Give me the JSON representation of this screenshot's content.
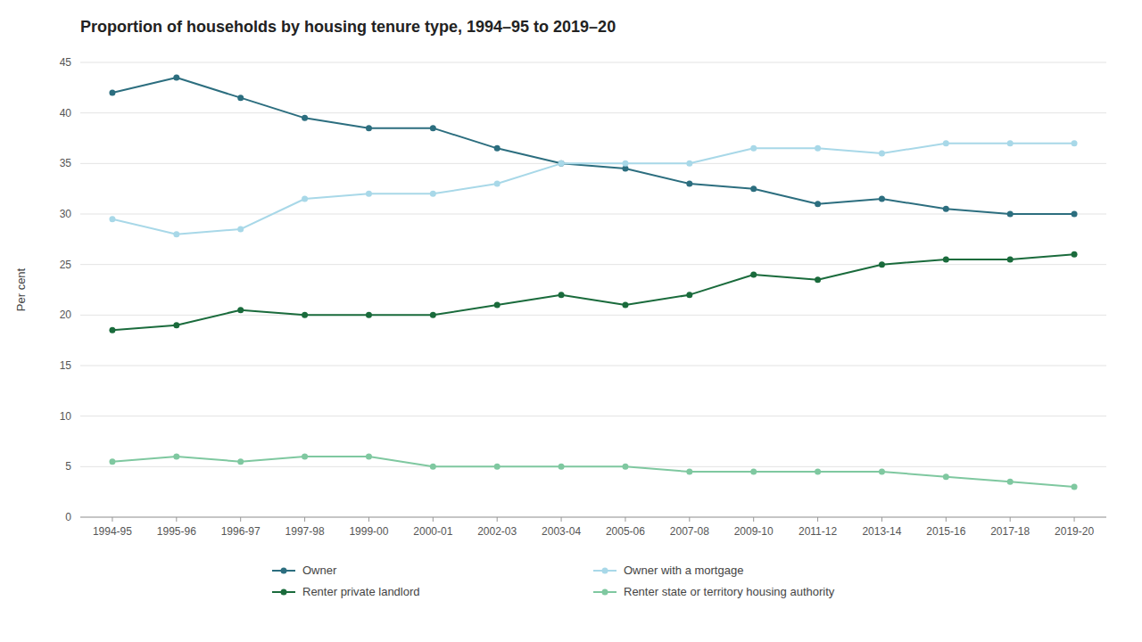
{
  "chart_data": {
    "type": "line",
    "title": "Proportion of households by housing tenure type, 1994–95 to 2019–20",
    "ylabel": "Per cent",
    "categories": [
      "1994-95",
      "1995-96",
      "1996-97",
      "1997-98",
      "1999-00",
      "2000-01",
      "2002-03",
      "2003-04",
      "2005-06",
      "2007-08",
      "2009-10",
      "2011-12",
      "2013-14",
      "2015-16",
      "2017-18",
      "2019-20"
    ],
    "series": [
      {
        "name": "Owner",
        "color": "#2c6e7f",
        "values": [
          42.0,
          43.5,
          41.5,
          39.5,
          38.5,
          38.5,
          36.5,
          35.0,
          34.5,
          33.0,
          32.5,
          31.0,
          31.5,
          30.5,
          30.0,
          30.0
        ]
      },
      {
        "name": "Owner with a mortgage",
        "color": "#a8d8e8",
        "values": [
          29.5,
          28.0,
          28.5,
          31.5,
          32.0,
          32.0,
          33.0,
          35.0,
          35.0,
          35.0,
          36.5,
          36.5,
          36.0,
          37.0,
          37.0,
          37.0
        ]
      },
      {
        "name": "Renter private landlord",
        "color": "#1a6b3c",
        "values": [
          18.5,
          19.0,
          20.5,
          20.0,
          20.0,
          20.0,
          21.0,
          22.0,
          21.0,
          22.0,
          24.0,
          23.5,
          25.0,
          25.5,
          25.5,
          26.0
        ]
      },
      {
        "name": "Renter state or territory housing authority",
        "color": "#7fc8a0",
        "values": [
          5.5,
          6.0,
          5.5,
          6.0,
          6.0,
          5.0,
          5.0,
          5.0,
          5.0,
          4.5,
          4.5,
          4.5,
          4.5,
          4.0,
          3.5,
          3.0
        ]
      }
    ],
    "marker": "circle",
    "ylim": [
      0,
      45
    ],
    "yticks": [
      0,
      5,
      10,
      15,
      20,
      25,
      30,
      35,
      40,
      45
    ],
    "grid": true,
    "legend": "bottom"
  }
}
